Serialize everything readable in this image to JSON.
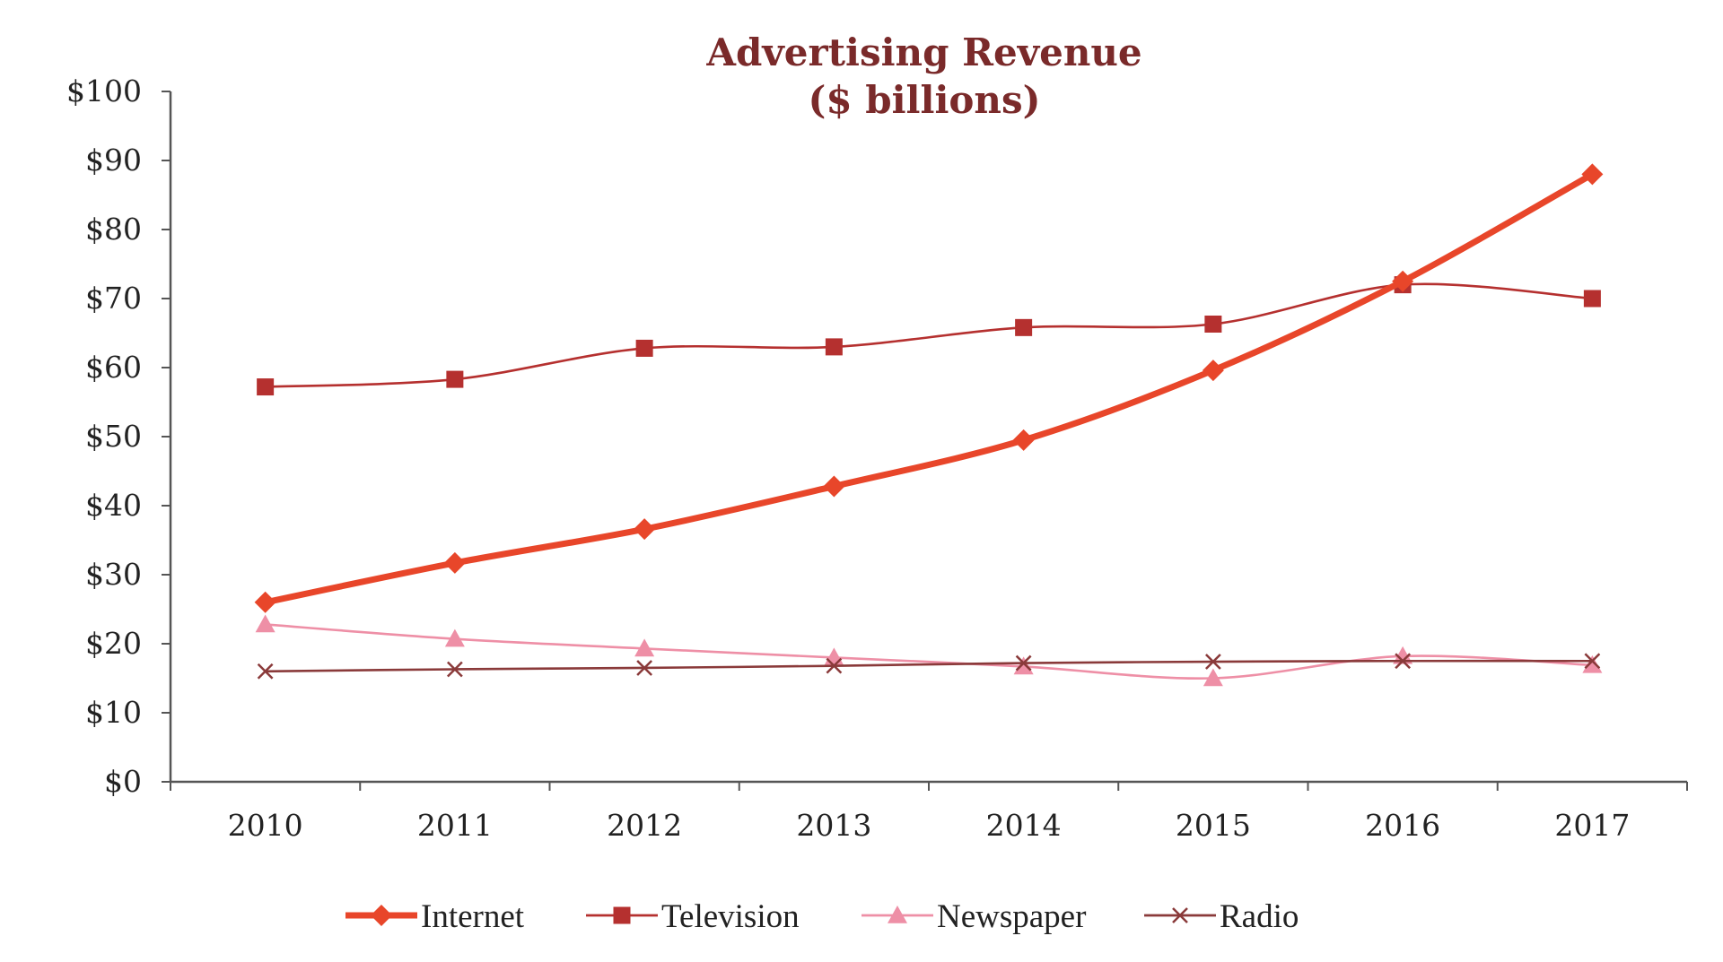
{
  "chart_data": {
    "type": "line",
    "title": "Advertising Revenue",
    "subtitle": "($ billions)",
    "categories": [
      "2010",
      "2011",
      "2012",
      "2013",
      "2014",
      "2015",
      "2016",
      "2017"
    ],
    "y_ticks": [
      0,
      10,
      20,
      30,
      40,
      50,
      60,
      70,
      80,
      90,
      100
    ],
    "y_tick_labels": [
      "$0",
      "$10",
      "$20",
      "$30",
      "$40",
      "$50",
      "$60",
      "$70",
      "$80",
      "$90",
      "$100"
    ],
    "ylim": [
      0,
      100
    ],
    "xlabel": "",
    "ylabel": "",
    "legend_position": "bottom",
    "series": [
      {
        "name": "Internet",
        "marker": "diamond",
        "color": "#e8462a",
        "emphasis": true,
        "values": [
          26,
          31.7,
          36.6,
          42.8,
          49.5,
          59.6,
          72.5,
          88
        ]
      },
      {
        "name": "Television",
        "marker": "square",
        "color": "#b5302f",
        "emphasis": false,
        "values": [
          57.2,
          58.3,
          62.8,
          63,
          65.8,
          66.3,
          72,
          70
        ]
      },
      {
        "name": "Newspaper",
        "marker": "triangle",
        "color": "#ee8fa6",
        "emphasis": false,
        "values": [
          22.8,
          20.7,
          19.3,
          18,
          16.7,
          15,
          18.2,
          16.9
        ]
      },
      {
        "name": "Radio",
        "marker": "x",
        "color": "#8a3a3a",
        "emphasis": false,
        "values": [
          16,
          16.3,
          16.5,
          16.8,
          17.2,
          17.4,
          17.5,
          17.5
        ]
      }
    ],
    "title_color": "#7a2a2a",
    "axis_color": "#555555"
  }
}
